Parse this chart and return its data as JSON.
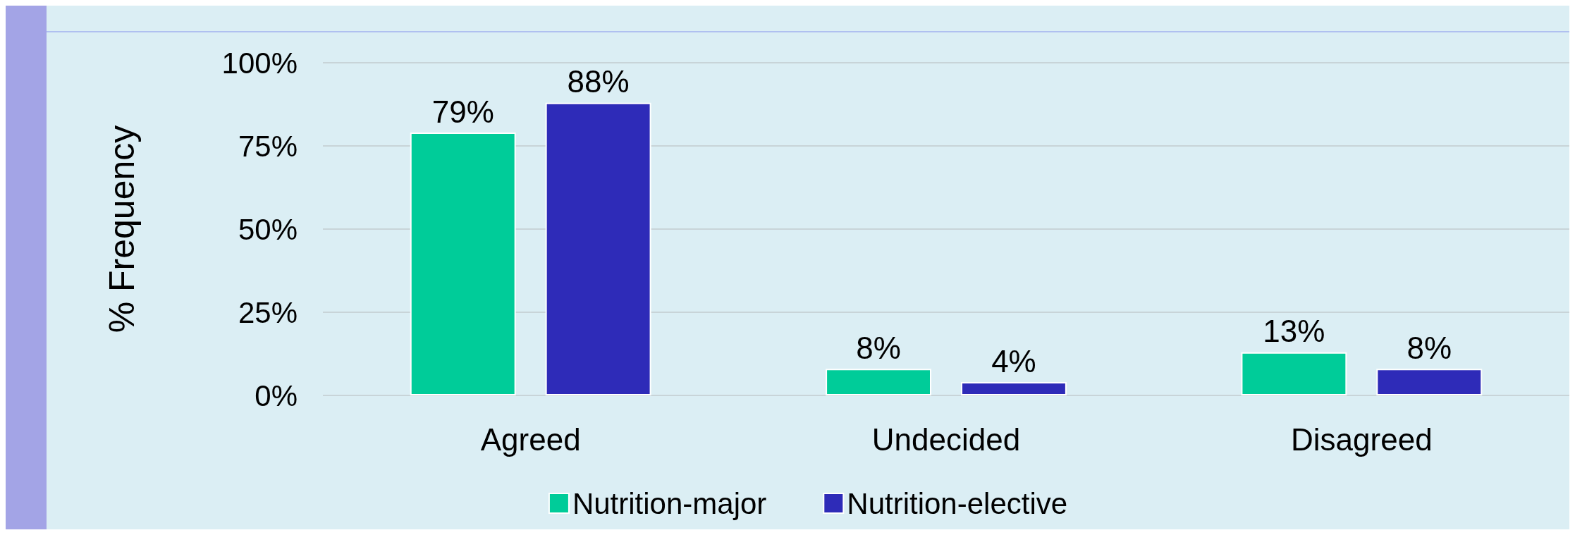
{
  "chart_data": {
    "type": "bar",
    "ylabel": "% Frequency",
    "categories": [
      "Agreed",
      "Undecided",
      "Disagreed"
    ],
    "series": [
      {
        "name": "Nutrition-major",
        "color": "#00cc99",
        "values": [
          79,
          8,
          13
        ]
      },
      {
        "name": "Nutrition-elective",
        "color": "#2e2bb8",
        "values": [
          88,
          4,
          8
        ]
      }
    ],
    "ylim": [
      0,
      100
    ],
    "yticks": [
      {
        "value": 0,
        "label": "0%"
      },
      {
        "value": 25,
        "label": "25%"
      },
      {
        "value": 50,
        "label": "50%"
      },
      {
        "value": 75,
        "label": "75%"
      },
      {
        "value": 100,
        "label": "100%"
      }
    ],
    "value_labels": [
      [
        "79%",
        "8%",
        "13%"
      ],
      [
        "88%",
        "4%",
        "8%"
      ]
    ],
    "grid": "y",
    "legend": "bottom"
  }
}
